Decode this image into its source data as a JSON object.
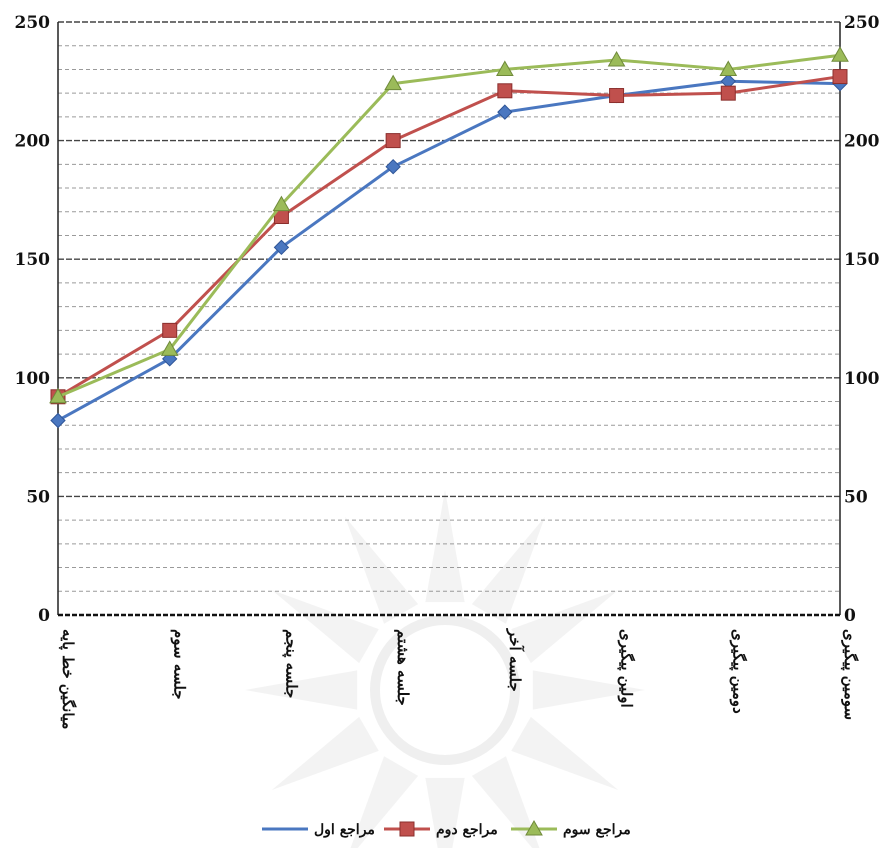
{
  "chart_data": {
    "type": "line",
    "title": "",
    "xlabel": "",
    "ylabel": "",
    "categories": [
      "میانگین خط پایه",
      "جلسه سوم",
      "جلسه پنجم",
      "جلسه هشتم",
      "جلسه آخر",
      "اولین پیگیری",
      "دومین پیگیری",
      "سومین پیگیری"
    ],
    "ylim": [
      0,
      250
    ],
    "y_ticks": [
      0,
      50,
      100,
      150,
      200,
      250
    ],
    "y_tick_labels": [
      "0",
      "50",
      "100",
      "150",
      "200",
      "250"
    ],
    "secondary_axis_right": true,
    "grid": true,
    "legend_position": "bottom",
    "series": [
      {
        "name": "مراجع اول",
        "color": "#4a77c0",
        "marker": "diamond",
        "values": [
          82,
          108,
          155,
          189,
          212,
          219,
          225,
          224
        ]
      },
      {
        "name": "مراجع دوم",
        "color": "#c0504d",
        "marker": "square",
        "values": [
          92,
          120,
          168,
          200,
          221,
          219,
          220,
          227
        ]
      },
      {
        "name": "مراجع سوم",
        "color": "#9bbb59",
        "marker": "triangle",
        "values": [
          92,
          112,
          173,
          224,
          230,
          234,
          230,
          236
        ]
      }
    ]
  }
}
